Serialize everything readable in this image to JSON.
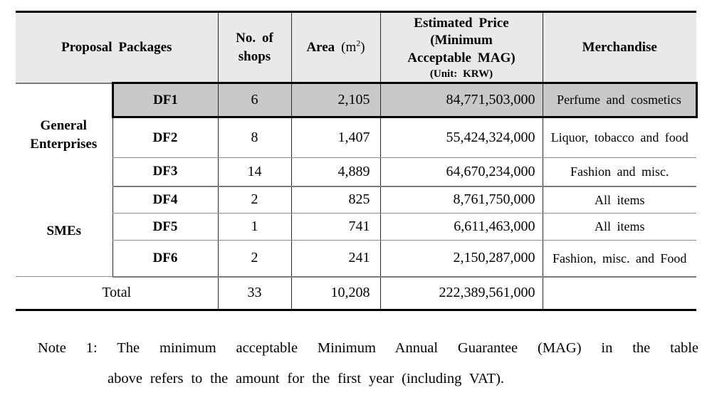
{
  "table": {
    "header": {
      "proposal_packages": "Proposal Packages",
      "no_of_shops": "No. of shops",
      "area_label": "Area",
      "area_unit_pre": "(m",
      "area_sup": "2",
      "area_unit_post": ")",
      "estimated_price": "Estimated Price\n(Minimum\nAcceptable MAG)",
      "estimated_price_unit": "(Unit: KRW)",
      "merchandise": "Merchandise"
    },
    "groups": [
      {
        "label": "General Enterprises",
        "rows": [
          {
            "package": "DF1",
            "shops": "6",
            "area": "2,105",
            "price": "84,771,503,000",
            "merchandise": "Perfume and cosmetics",
            "highlighted": true
          },
          {
            "package": "DF2",
            "shops": "8",
            "area": "1,407",
            "price": "55,424,324,000",
            "merchandise": "Liquor, tobacco and food",
            "highlighted": false
          },
          {
            "package": "DF3",
            "shops": "14",
            "area": "4,889",
            "price": "64,670,234,000",
            "merchandise": "Fashion and misc.",
            "highlighted": false
          }
        ]
      },
      {
        "label": "SMEs",
        "rows": [
          {
            "package": "DF4",
            "shops": "2",
            "area": "825",
            "price": "8,761,750,000",
            "merchandise": "All items",
            "highlighted": false
          },
          {
            "package": "DF5",
            "shops": "1",
            "area": "741",
            "price": "6,611,463,000",
            "merchandise": "All items",
            "highlighted": false
          },
          {
            "package": "DF6",
            "shops": "2",
            "area": "241",
            "price": "2,150,287,000",
            "merchandise": "Fashion, misc. and Food",
            "highlighted": false
          }
        ]
      }
    ],
    "total": {
      "label": "Total",
      "shops": "33",
      "area": "10,208",
      "price": "222,389,561,000",
      "merchandise": ""
    }
  },
  "note": {
    "line1": "Note 1: The minimum acceptable Minimum Annual Guarantee (MAG) in the table",
    "line2": "above refers to the amount for the first year (including VAT)."
  },
  "colors": {
    "header_bg": "#e9e9e9",
    "highlight_bg": "#c9c9c9",
    "thick_border": "#000000",
    "thin_rule": "#8a8a8a"
  }
}
